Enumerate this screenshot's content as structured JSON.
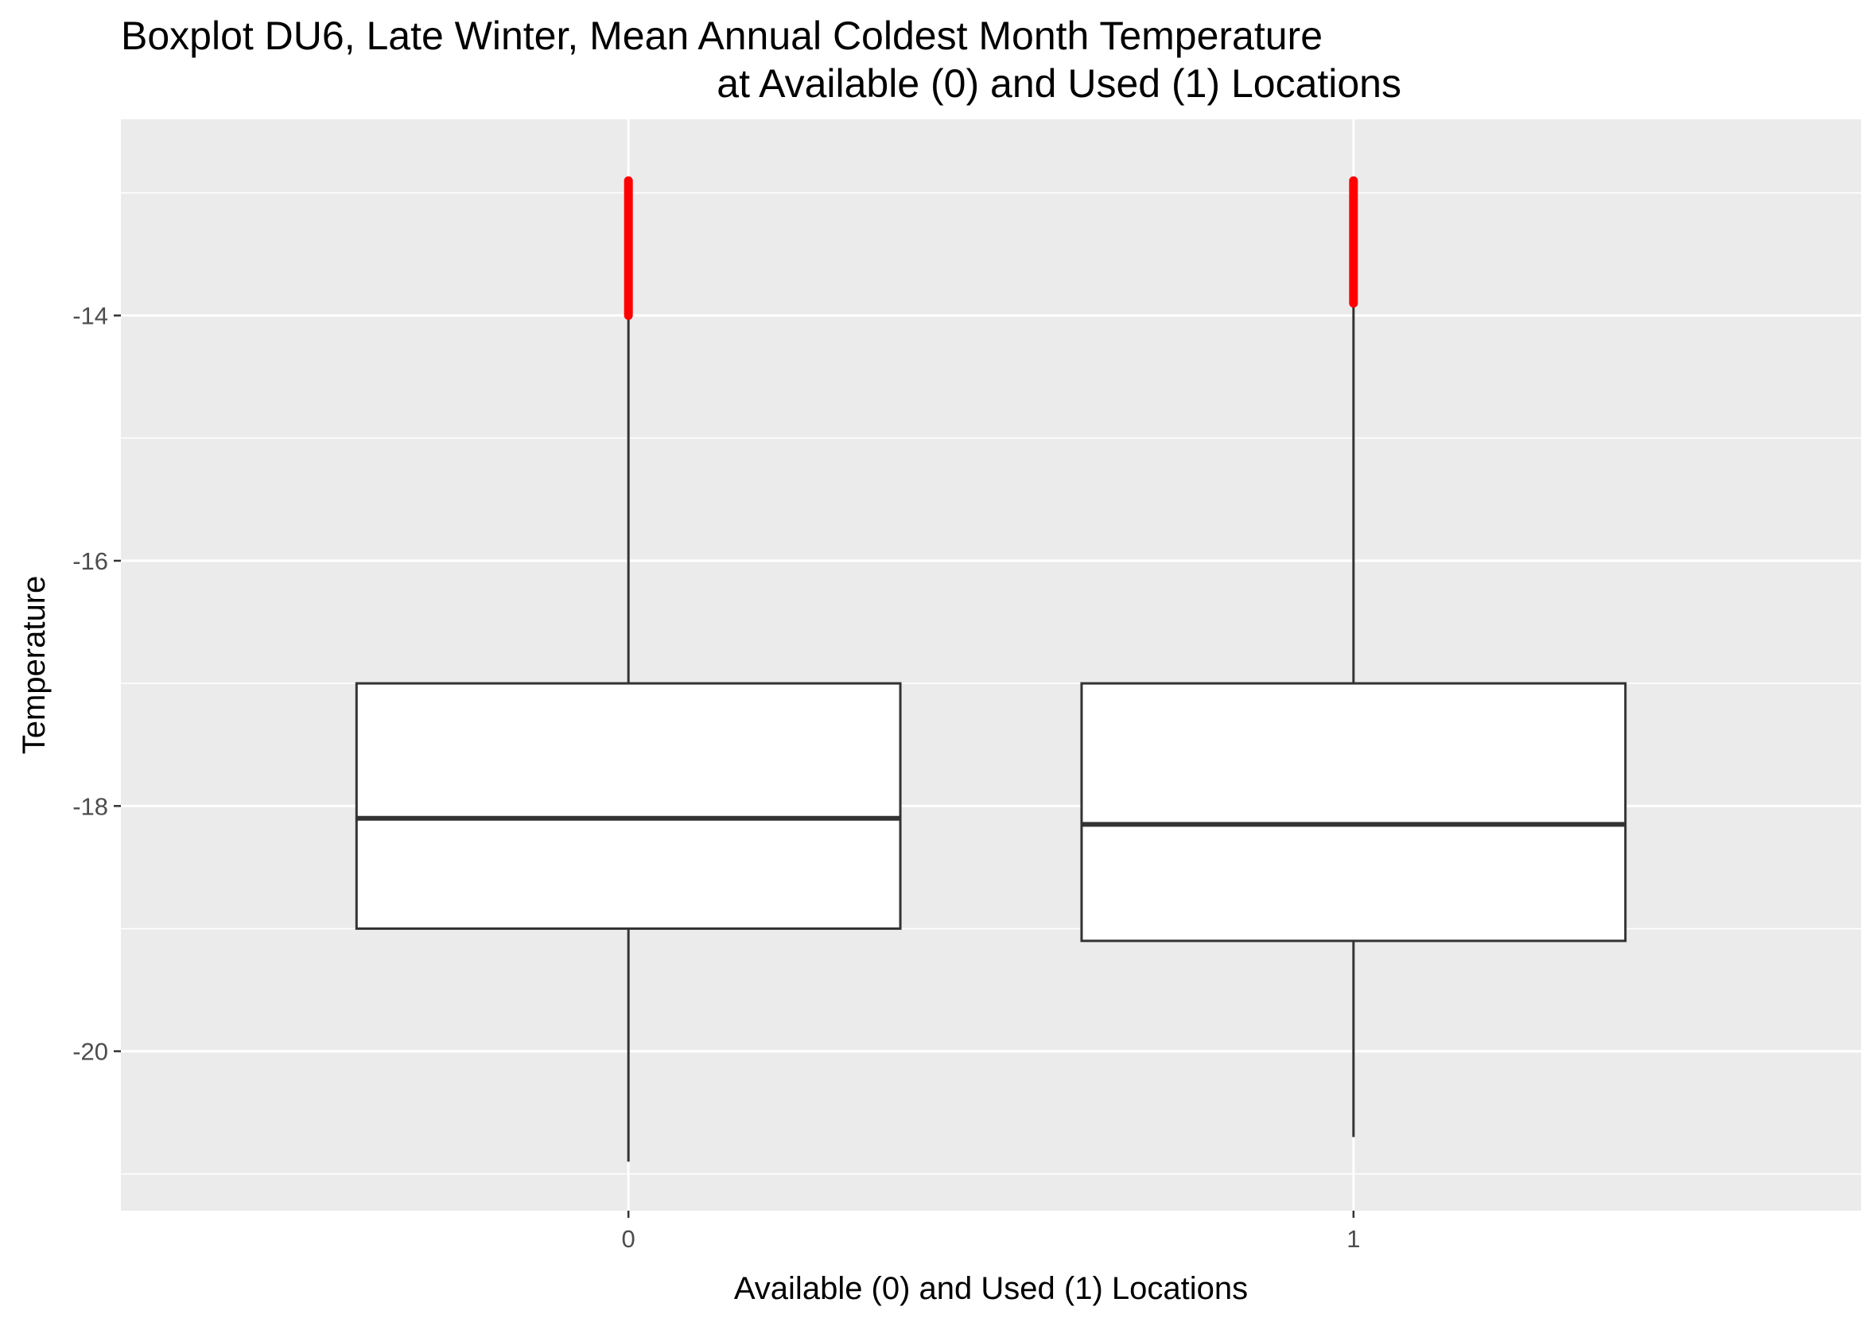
{
  "chart_data": {
    "type": "boxplot",
    "title_lines": [
      "Boxplot DU6, Late Winter, Mean Annual Coldest Month Temperature",
      "at Available (0) and Used (1) Locations"
    ],
    "xlabel": "Available (0) and Used (1) Locations",
    "ylabel": "Temperature",
    "categories": [
      "0",
      "1"
    ],
    "ylim": [
      -21.3,
      -12.4
    ],
    "yticks": [
      -14,
      -16,
      -18,
      -20
    ],
    "ytick_labels": [
      "-14",
      "-16",
      "-18",
      "-20"
    ],
    "grid": true,
    "boxes": [
      {
        "category": "0",
        "whisker_low": -20.9,
        "q1": -19.0,
        "median": -18.1,
        "q3": -17.0,
        "whisker_high": -14.0,
        "outlier_min": -14.0,
        "outlier_max": -12.9
      },
      {
        "category": "1",
        "whisker_low": -20.7,
        "q1": -19.1,
        "median": -18.15,
        "q3": -17.0,
        "whisker_high": -13.9,
        "outlier_min": -13.9,
        "outlier_max": -12.9
      }
    ],
    "colors": {
      "panel_background": "#ebebeb",
      "grid": "#ffffff",
      "box_fill": "#ffffff",
      "box_line": "#333333",
      "outliers": "#ff0000",
      "tick_text": "#4d4d4d"
    }
  }
}
